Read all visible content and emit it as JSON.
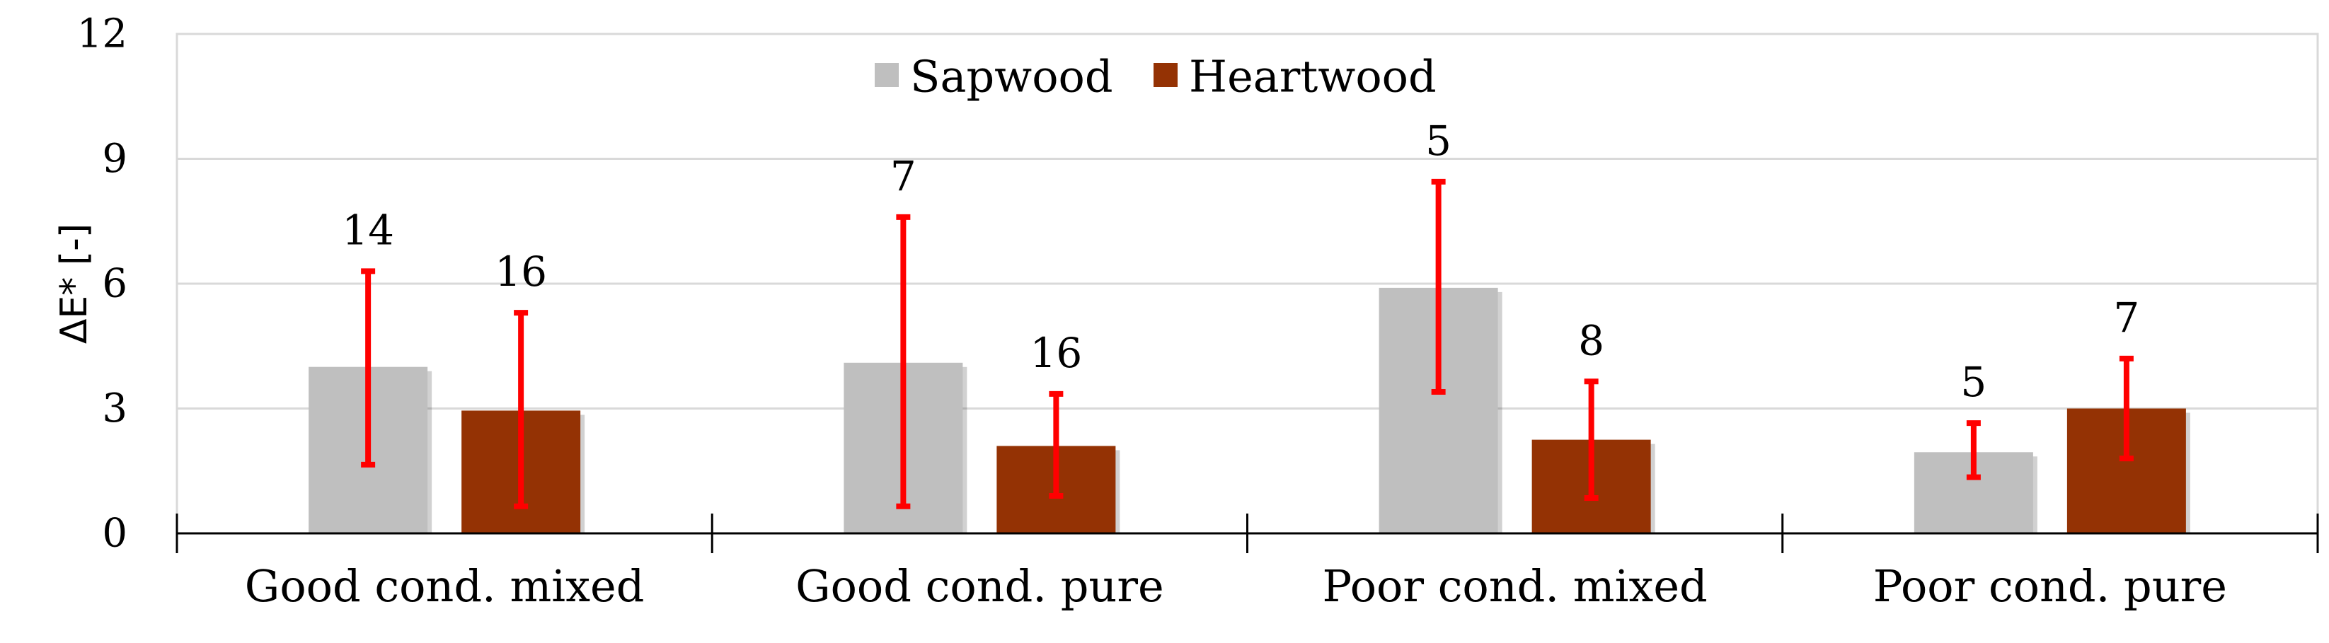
{
  "chart_data": {
    "type": "bar",
    "title": "",
    "xlabel": "",
    "ylabel": "ΔE* [-]",
    "ylim": [
      0,
      12
    ],
    "yticks": [
      "0",
      "3",
      "6",
      "9",
      "12"
    ],
    "grid": true,
    "legend_position": "top-center",
    "categories": [
      "Good cond. mixed",
      "Good cond. pure",
      "Poor cond. mixed",
      "Poor cond. pure"
    ],
    "series": [
      {
        "name": "Sapwood",
        "color": "#BFBFBF",
        "values": [
          4.0,
          4.1,
          5.9,
          1.95
        ],
        "error_low": [
          1.65,
          0.65,
          3.4,
          1.35
        ],
        "error_high": [
          6.3,
          7.6,
          8.45,
          2.65
        ],
        "labels": [
          "14",
          "7",
          "5",
          "5"
        ]
      },
      {
        "name": "Heartwood",
        "color": "#943204",
        "values": [
          2.95,
          2.1,
          2.25,
          3.0
        ],
        "error_low": [
          0.65,
          0.9,
          0.85,
          1.8
        ],
        "error_high": [
          5.3,
          3.35,
          3.65,
          4.2
        ],
        "labels": [
          "16",
          "16",
          "8",
          "7"
        ]
      }
    ],
    "error_bar_color": "#FF0000"
  }
}
